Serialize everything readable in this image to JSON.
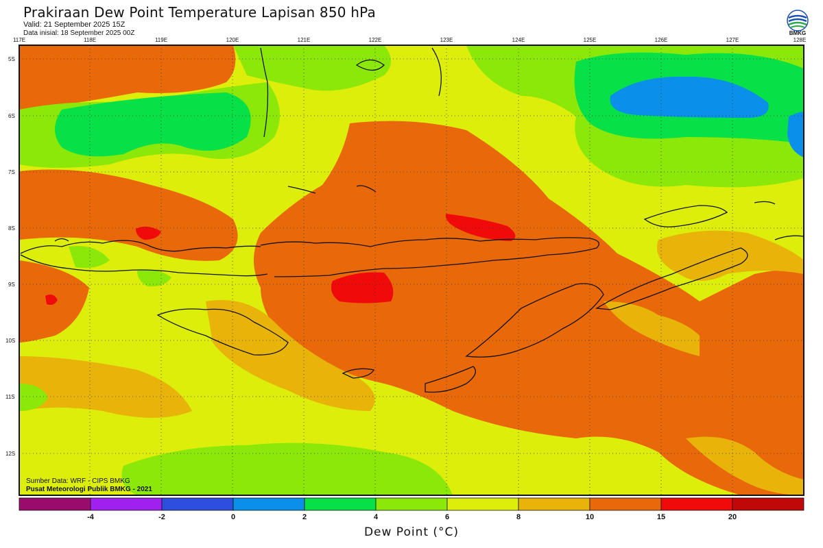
{
  "header": {
    "title": "Prakiraan Dew Point Temperature Lapisan 850 hPa",
    "valid": "Valid: 21 September 2025 15Z",
    "init": "Data inisial: 18 September 2025 00Z",
    "logo_text": "BMKG"
  },
  "map": {
    "lon_ticks": [
      "117E",
      "118E",
      "119E",
      "120E",
      "121E",
      "122E",
      "123E",
      "124E",
      "125E",
      "126E",
      "127E",
      "128E"
    ],
    "lat_ticks": [
      "5S",
      "6S",
      "7S",
      "8S",
      "9S",
      "10S",
      "11S",
      "12S"
    ],
    "source_line1": "Sumber Data: WRF - CIPS BMKG",
    "source_line2": "Pusat Meteorologi Publik BMKG - 2021"
  },
  "colorbar": {
    "title": "Dew Point (°C)",
    "labels": [
      "-4",
      "-2",
      "0",
      "2",
      "4",
      "6",
      "8",
      "10",
      "15",
      "20"
    ],
    "colors": [
      "#9a0c6c",
      "#a020f0",
      "#2e4ee0",
      "#0a90e8",
      "#08e048",
      "#8ce808",
      "#dcee0a",
      "#e8b40a",
      "#e8680a",
      "#f00a0a",
      "#c00808"
    ]
  },
  "palette": {
    "lightgreen": "#8ce808",
    "green": "#08e048",
    "blue": "#0a90e8",
    "yellow": "#dcee0a",
    "gold": "#e8b40a",
    "orange": "#e8680a",
    "red": "#f00a0a",
    "coast": "#111111"
  }
}
